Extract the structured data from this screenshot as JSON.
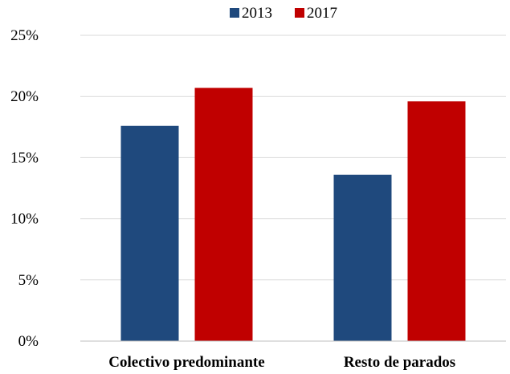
{
  "chart_data": {
    "type": "bar",
    "categories": [
      "Colectivo predominante",
      "Resto de parados"
    ],
    "series": [
      {
        "name": "2013",
        "values": [
          17.6,
          13.6
        ]
      },
      {
        "name": "2017",
        "values": [
          20.7,
          19.6
        ]
      }
    ],
    "ylim": [
      0,
      25
    ],
    "yticks": [
      "0%",
      "5%",
      "10%",
      "15%",
      "20%",
      "25%"
    ],
    "grid": true,
    "legend_position": "top",
    "colors": {
      "2013": "#1F497D",
      "2017": "#C00000",
      "grid": "#D9D9D9",
      "axis": "#BFBFBF"
    }
  }
}
